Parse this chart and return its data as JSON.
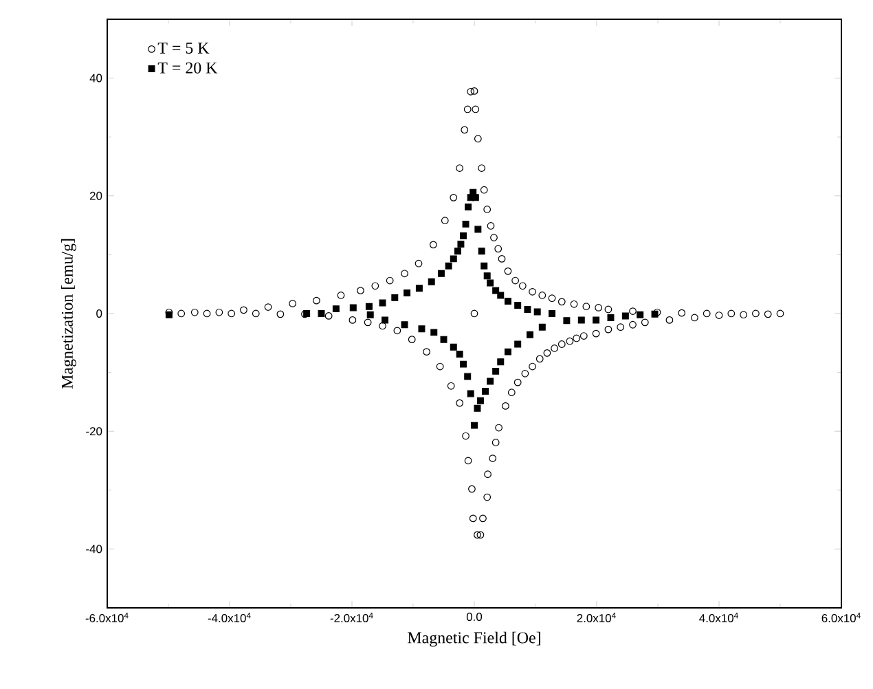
{
  "chart_data": {
    "type": "scatter",
    "xlabel": "Magnetic Field [Oe]",
    "ylabel": "Magnetization [emu/g]",
    "xlim": [
      -60000,
      60000
    ],
    "ylim": [
      -50,
      50
    ],
    "xticks": [
      {
        "value": -60000,
        "label": "-6.0x10$^{4}$"
      },
      {
        "value": -40000,
        "label": "-4.0x10$^{4}$"
      },
      {
        "value": -20000,
        "label": "-2.0x10$^{4}$"
      },
      {
        "value": 0,
        "label": "0.0"
      },
      {
        "value": 20000,
        "label": "2.0x10$^{4}$"
      },
      {
        "value": 40000,
        "label": "4.0x10$^{4}$"
      },
      {
        "value": 60000,
        "label": "6.0x10$^{4}$"
      }
    ],
    "yticks": [
      -40,
      -20,
      0,
      20,
      40
    ],
    "grid": false,
    "legend": "top left",
    "series": [
      {
        "name": "T = 5 K",
        "color": "#000000",
        "marker": "circle",
        "x": [
          -49900,
          -45700,
          -41700,
          -37700,
          -33700,
          -29700,
          -25800,
          -21800,
          -18600,
          -16200,
          -13800,
          -11400,
          -9100,
          -6700,
          -4800,
          -3400,
          -2400,
          -1600,
          -1100,
          -600,
          0,
          200,
          600,
          1200,
          1600,
          2100,
          2700,
          3200,
          3900,
          4500,
          5500,
          6700,
          7900,
          9500,
          11100,
          12700,
          14300,
          16300,
          18300,
          20300,
          21900,
          25900,
          29900,
          33900,
          38000,
          42000,
          46000,
          50000,
          0,
          -47900,
          -43700,
          -39700,
          -35700,
          -31700,
          -27700,
          -23800,
          -19900,
          -17400,
          -15000,
          -12600,
          -10200,
          -7800,
          -5600,
          -3800,
          -2400,
          -1400,
          -1000,
          -400,
          -200,
          500,
          1000,
          1400,
          2100,
          2200,
          3000,
          3500,
          4000,
          5100,
          6100,
          7100,
          8300,
          9500,
          10700,
          11900,
          13100,
          14300,
          15600,
          16700,
          17900,
          19900,
          21900,
          23900,
          25900,
          27900,
          31900,
          36000,
          40000,
          44000,
          48000
        ],
        "values": [
          0.2,
          0.2,
          0.2,
          0.6,
          1.1,
          1.7,
          2.2,
          3.1,
          3.9,
          4.7,
          5.6,
          6.8,
          8.5,
          11.7,
          15.8,
          19.7,
          24.7,
          31.2,
          34.7,
          37.7,
          37.8,
          34.7,
          29.7,
          24.7,
          21.0,
          17.7,
          14.9,
          12.9,
          11.0,
          9.3,
          7.2,
          5.6,
          4.7,
          3.7,
          3.1,
          2.6,
          2.0,
          1.6,
          1.2,
          1.0,
          0.7,
          0.4,
          0.2,
          0.1,
          0,
          0,
          0,
          0,
          0,
          0,
          0,
          0,
          0,
          -0.1,
          -0.1,
          -0.4,
          -1.1,
          -1.5,
          -2.1,
          -2.9,
          -4.4,
          -6.5,
          -9.0,
          -12.3,
          -15.2,
          -20.8,
          -25.0,
          -29.8,
          -34.8,
          -37.6,
          -37.6,
          -34.8,
          -31.2,
          -27.3,
          -24.6,
          -21.9,
          -19.4,
          -15.7,
          -13.4,
          -11.7,
          -10.2,
          -9.0,
          -7.7,
          -6.7,
          -5.9,
          -5.2,
          -4.7,
          -4.2,
          -3.8,
          -3.4,
          -2.7,
          -2.3,
          -1.9,
          -1.5,
          -1.1,
          -0.7,
          -0.3,
          -0.2,
          -0.1
        ]
      },
      {
        "name": "T = 20 K",
        "color": "#000000",
        "marker": "square",
        "x": [
          -49900,
          -27400,
          -25000,
          -22600,
          -19800,
          -17200,
          -15000,
          -13000,
          -11000,
          -9000,
          -7000,
          -5400,
          -4200,
          -3400,
          -2700,
          -2200,
          -1800,
          -1400,
          -1000,
          -600,
          -200,
          200,
          600,
          1200,
          1600,
          2100,
          2600,
          3500,
          4300,
          5500,
          7100,
          8700,
          10300,
          12700,
          15100,
          17500,
          19900,
          22300,
          24700,
          27100,
          29500,
          11100,
          9100,
          7100,
          5500,
          4300,
          3500,
          2600,
          1800,
          1000,
          500,
          0,
          -600,
          -1100,
          -1800,
          -2400,
          -3400,
          -5000,
          -6600,
          -8600,
          -11400,
          -14600,
          -17000
        ],
        "values": [
          -0.2,
          0,
          0,
          0.8,
          1.0,
          1.2,
          1.8,
          2.7,
          3.5,
          4.3,
          5.4,
          6.8,
          8.1,
          9.3,
          10.6,
          11.8,
          13.2,
          15.2,
          18.1,
          19.7,
          20.6,
          19.7,
          14.3,
          10.6,
          8.1,
          6.4,
          5.2,
          3.9,
          3.1,
          2.1,
          1.4,
          0.7,
          0.3,
          0,
          -1.2,
          -1.1,
          -1.1,
          -0.7,
          -0.4,
          -0.2,
          -0.1,
          -2.3,
          -3.6,
          -5.2,
          -6.5,
          -8.2,
          -9.8,
          -11.5,
          -13.2,
          -14.8,
          -16.1,
          -19.0,
          -13.6,
          -10.7,
          -8.6,
          -6.9,
          -5.7,
          -4.4,
          -3.2,
          -2.6,
          -1.9,
          -1.1,
          -0.2
        ]
      }
    ]
  }
}
